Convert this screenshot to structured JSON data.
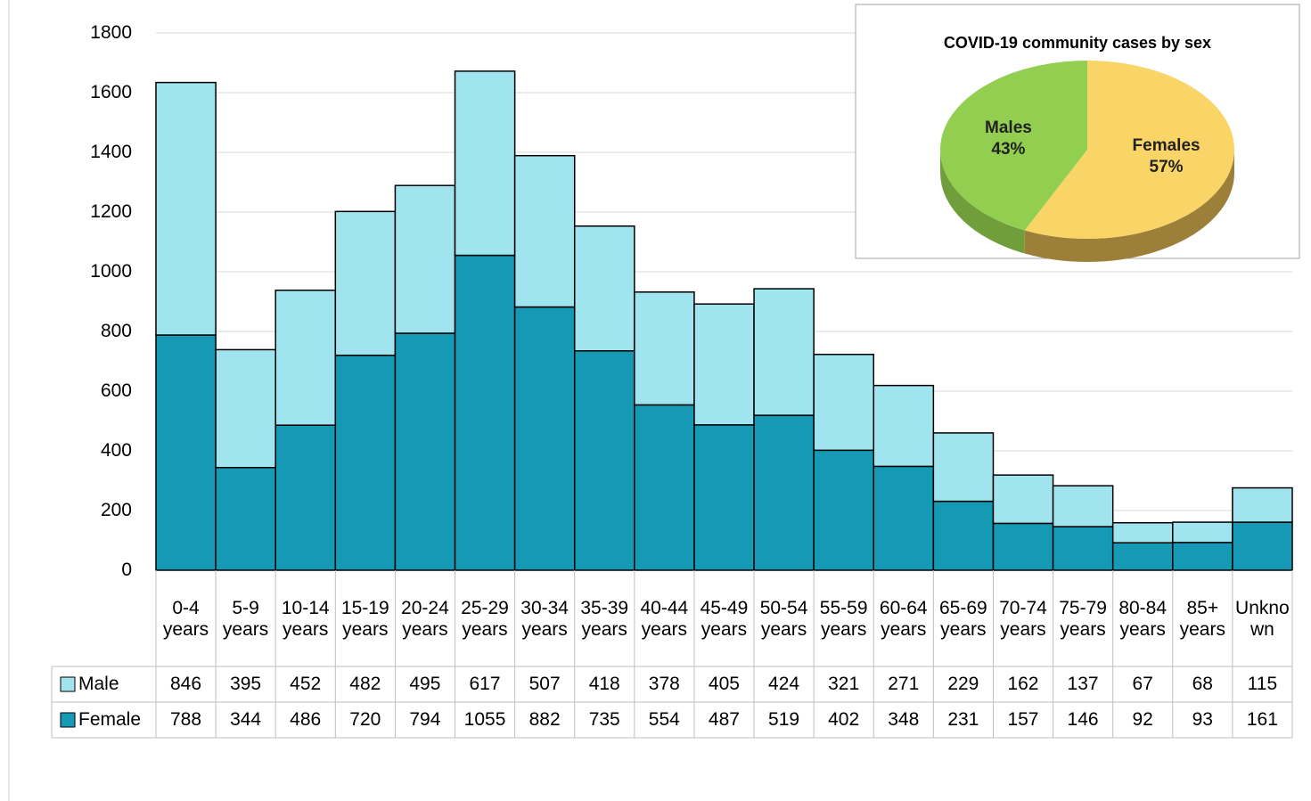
{
  "chart_data": [
    {
      "type": "bar",
      "stacked": true,
      "categories": [
        "0-4 years",
        "5-9 years",
        "10-14 years",
        "15-19 years",
        "20-24 years",
        "25-29 years",
        "30-34 years",
        "35-39 years",
        "40-44 years",
        "45-49 years",
        "50-54 years",
        "55-59 years",
        "60-64 years",
        "65-69 years",
        "70-74 years",
        "75-79 years",
        "80-84 years",
        "85+ years",
        "Unknown"
      ],
      "series": [
        {
          "name": "Female",
          "color": "#1599b5",
          "values": [
            788,
            344,
            486,
            720,
            794,
            1055,
            882,
            735,
            554,
            487,
            519,
            402,
            348,
            231,
            157,
            146,
            92,
            93,
            161
          ]
        },
        {
          "name": "Male",
          "color": "#9fe4ee",
          "values": [
            846,
            395,
            452,
            482,
            495,
            617,
            507,
            418,
            378,
            405,
            424,
            321,
            271,
            229,
            162,
            137,
            67,
            68,
            115
          ]
        }
      ],
      "ylim": [
        0,
        1800
      ],
      "yticks": [
        0,
        200,
        400,
        600,
        800,
        1000,
        1200,
        1400,
        1600,
        1800
      ],
      "grid": true,
      "data_table": true
    },
    {
      "type": "pie",
      "title": "COVID-19 community cases by sex",
      "categories": [
        "Males",
        "Females"
      ],
      "values": [
        43,
        57
      ],
      "value_labels": [
        "43%",
        "57%"
      ],
      "colors": [
        "#92cf50",
        "#f9d466"
      ]
    }
  ]
}
